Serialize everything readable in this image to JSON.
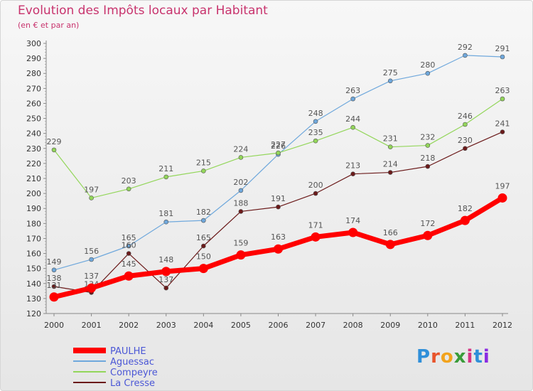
{
  "header": {
    "title": "Evolution des Impôts locaux par Habitant",
    "subtitle": "(en € et par an)"
  },
  "logo": {
    "text": "Proxiti",
    "colors": [
      "#2f8fd9",
      "#e8542b",
      "#f2a31d",
      "#3a9c3a",
      "#d63384",
      "#2f8fd9",
      "#8a2be2"
    ]
  },
  "chart_data": {
    "type": "line",
    "x": [
      "2000",
      "2001",
      "2002",
      "2003",
      "2004",
      "2005",
      "2006",
      "2007",
      "2008",
      "2009",
      "2010",
      "2011",
      "2012"
    ],
    "ylim": [
      120,
      300
    ],
    "yticks": [
      120,
      130,
      140,
      150,
      160,
      170,
      180,
      190,
      200,
      210,
      220,
      230,
      240,
      250,
      260,
      270,
      280,
      290,
      300
    ],
    "grid": false,
    "legend_position": "bottom-left",
    "series": [
      {
        "name": "PAULHE",
        "color": "#ff0000",
        "emphasis": true,
        "values": [
          131,
          137,
          145,
          148,
          150,
          159,
          163,
          171,
          174,
          166,
          172,
          182,
          197
        ]
      },
      {
        "name": "Aguessac",
        "color": "#6fa8dc",
        "values": [
          149,
          156,
          165,
          181,
          182,
          202,
          226,
          248,
          263,
          275,
          280,
          292,
          291
        ]
      },
      {
        "name": "Compeyre",
        "color": "#93d65a",
        "values": [
          229,
          197,
          203,
          211,
          215,
          224,
          227,
          235,
          244,
          231,
          232,
          246,
          263
        ]
      },
      {
        "name": "La Cresse",
        "color": "#6b1a1a",
        "values": [
          138,
          134,
          160,
          137,
          165,
          188,
          191,
          200,
          213,
          214,
          218,
          230,
          241
        ]
      }
    ]
  }
}
